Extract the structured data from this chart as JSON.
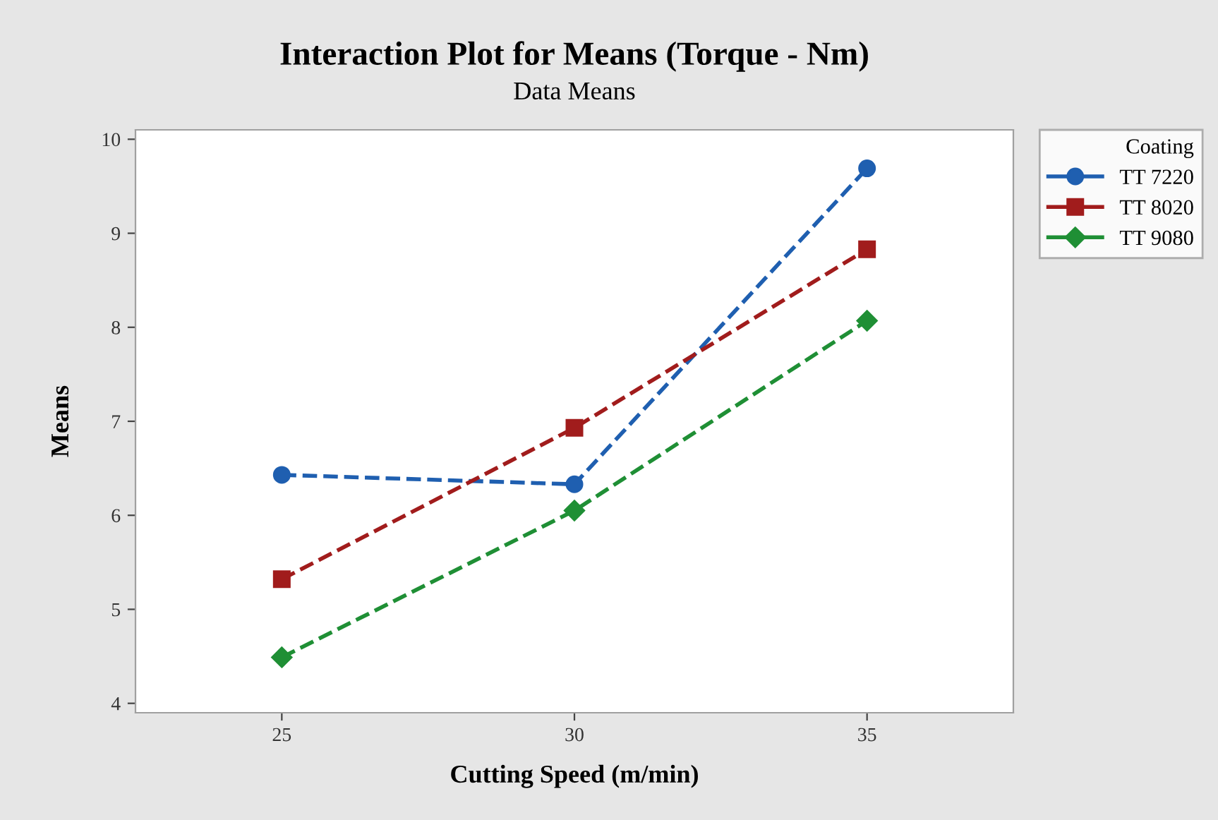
{
  "chart_data": {
    "type": "line",
    "title": "Interaction Plot for Means (Torque - Nm)",
    "subtitle": "Data Means",
    "xlabel": "Cutting Speed (m/min)",
    "ylabel": "Means",
    "legend_title": "Coating",
    "x": [
      25,
      30,
      35
    ],
    "series": [
      {
        "name": "TT 7220",
        "color": "#1f5fb0",
        "marker": "circle",
        "values": [
          6.43,
          6.33,
          9.69
        ]
      },
      {
        "name": "TT 8020",
        "color": "#a11c1c",
        "marker": "square",
        "values": [
          5.32,
          6.93,
          8.83
        ]
      },
      {
        "name": "TT 9080",
        "color": "#1f8f35",
        "marker": "diamond",
        "values": [
          4.49,
          6.05,
          8.07
        ]
      }
    ],
    "line_style": "dashed",
    "xlim": [
      22.5,
      37.5
    ],
    "ylim": [
      3.9,
      10.1
    ],
    "xticks": [
      25,
      30,
      35
    ],
    "yticks": [
      4,
      5,
      6,
      7,
      8,
      9,
      10
    ],
    "grid": false,
    "legend": "top right"
  }
}
